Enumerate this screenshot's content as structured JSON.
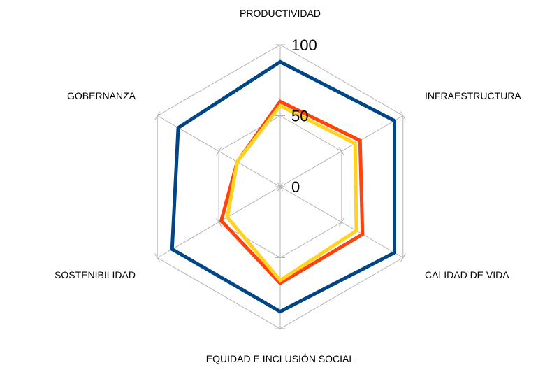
{
  "chart_data": {
    "type": "radar",
    "axes": [
      "PRODUCTIVIDAD",
      "INFRAESTRUCTURA",
      "CALIDAD DE VIDA",
      "EQUIDAD E INCLUSIÓN SOCIAL",
      "SOSTENIBILIDAD",
      "GOBERNANZA"
    ],
    "range": [
      0,
      100
    ],
    "ticks": [
      0,
      50,
      100
    ],
    "tick_labels": [
      "0",
      "50",
      "100"
    ],
    "grid": true,
    "legend": "none",
    "series": [
      {
        "color": "#004586",
        "values": [
          88,
          93,
          93,
          88,
          88,
          83
        ]
      },
      {
        "color": "#ff420e",
        "values": [
          60,
          65,
          67,
          68,
          48,
          35
        ]
      },
      {
        "color": "#ffd320",
        "values": [
          57,
          61,
          62,
          66,
          43,
          35
        ]
      }
    ]
  }
}
